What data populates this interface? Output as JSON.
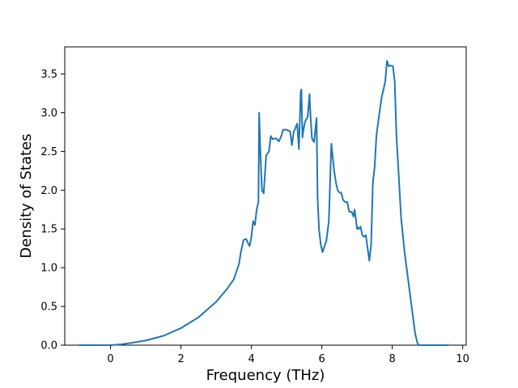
{
  "chart_data": {
    "type": "line",
    "title": "",
    "xlabel": "Frequency (THz)",
    "ylabel": "Density of States",
    "xlim": [
      -1.3,
      10.1
    ],
    "ylim": [
      0.0,
      3.85
    ],
    "xticks": [
      0,
      2,
      4,
      6,
      8,
      10
    ],
    "yticks": [
      0.0,
      0.5,
      1.0,
      1.5,
      2.0,
      2.5,
      3.0,
      3.5
    ],
    "xtick_labels": [
      "0",
      "2",
      "4",
      "6",
      "8",
      "10"
    ],
    "ytick_labels": [
      "0.0",
      "0.5",
      "1.0",
      "1.5",
      "2.0",
      "2.5",
      "3.0",
      "3.5"
    ],
    "grid": false,
    "legend": "none",
    "line_color": "#1f77b4",
    "series": [
      {
        "x": [
          -0.9,
          0.0,
          0.3,
          0.6,
          1.0,
          1.5,
          2.0,
          2.5,
          3.0,
          3.3,
          3.5,
          3.65,
          3.7,
          3.78,
          3.85,
          3.9,
          3.95,
          4.0,
          4.05,
          4.1,
          4.15,
          4.2,
          4.22,
          4.25,
          4.3,
          4.35,
          4.42,
          4.5,
          4.55,
          4.6,
          4.7,
          4.78,
          4.85,
          4.9,
          5.0,
          5.1,
          5.15,
          5.2,
          5.25,
          5.3,
          5.35,
          5.4,
          5.42,
          5.45,
          5.48,
          5.52,
          5.6,
          5.65,
          5.68,
          5.72,
          5.78,
          5.85,
          5.88,
          5.92,
          5.97,
          6.02,
          6.08,
          6.13,
          6.2,
          6.27,
          6.35,
          6.4,
          6.45,
          6.5,
          6.55,
          6.6,
          6.65,
          6.72,
          6.78,
          6.85,
          6.9,
          6.93,
          6.97,
          7.0,
          7.02,
          7.05,
          7.1,
          7.15,
          7.2,
          7.25,
          7.3,
          7.35,
          7.4,
          7.45,
          7.5,
          7.55,
          7.6,
          7.7,
          7.8,
          7.85,
          7.9,
          7.95,
          8.02,
          8.07,
          8.12,
          8.17,
          8.25,
          8.35,
          8.45,
          8.55,
          8.65,
          8.72,
          8.76,
          8.8,
          9.6
        ],
        "y": [
          0.0,
          0.0,
          0.01,
          0.03,
          0.06,
          0.12,
          0.22,
          0.36,
          0.56,
          0.72,
          0.85,
          1.05,
          1.2,
          1.36,
          1.37,
          1.32,
          1.28,
          1.4,
          1.6,
          1.55,
          1.75,
          1.85,
          3.0,
          2.55,
          2.0,
          1.96,
          2.45,
          2.5,
          2.7,
          2.66,
          2.67,
          2.63,
          2.7,
          2.78,
          2.78,
          2.76,
          2.58,
          2.75,
          2.8,
          2.86,
          2.53,
          3.27,
          3.3,
          2.68,
          2.78,
          2.88,
          2.95,
          3.24,
          2.95,
          2.67,
          2.62,
          2.93,
          1.9,
          1.5,
          1.3,
          1.2,
          1.28,
          1.35,
          1.6,
          2.6,
          2.25,
          2.1,
          2.0,
          1.97,
          1.97,
          1.88,
          1.85,
          1.85,
          1.72,
          1.72,
          1.66,
          1.75,
          1.62,
          1.5,
          1.52,
          1.5,
          1.53,
          1.42,
          1.4,
          1.42,
          1.25,
          1.09,
          1.3,
          2.1,
          2.3,
          2.7,
          2.88,
          3.2,
          3.4,
          3.67,
          3.6,
          3.61,
          3.6,
          3.4,
          2.7,
          2.3,
          1.65,
          1.2,
          0.85,
          0.5,
          0.15,
          0.02,
          0.0,
          0.0,
          0.0
        ]
      }
    ]
  }
}
